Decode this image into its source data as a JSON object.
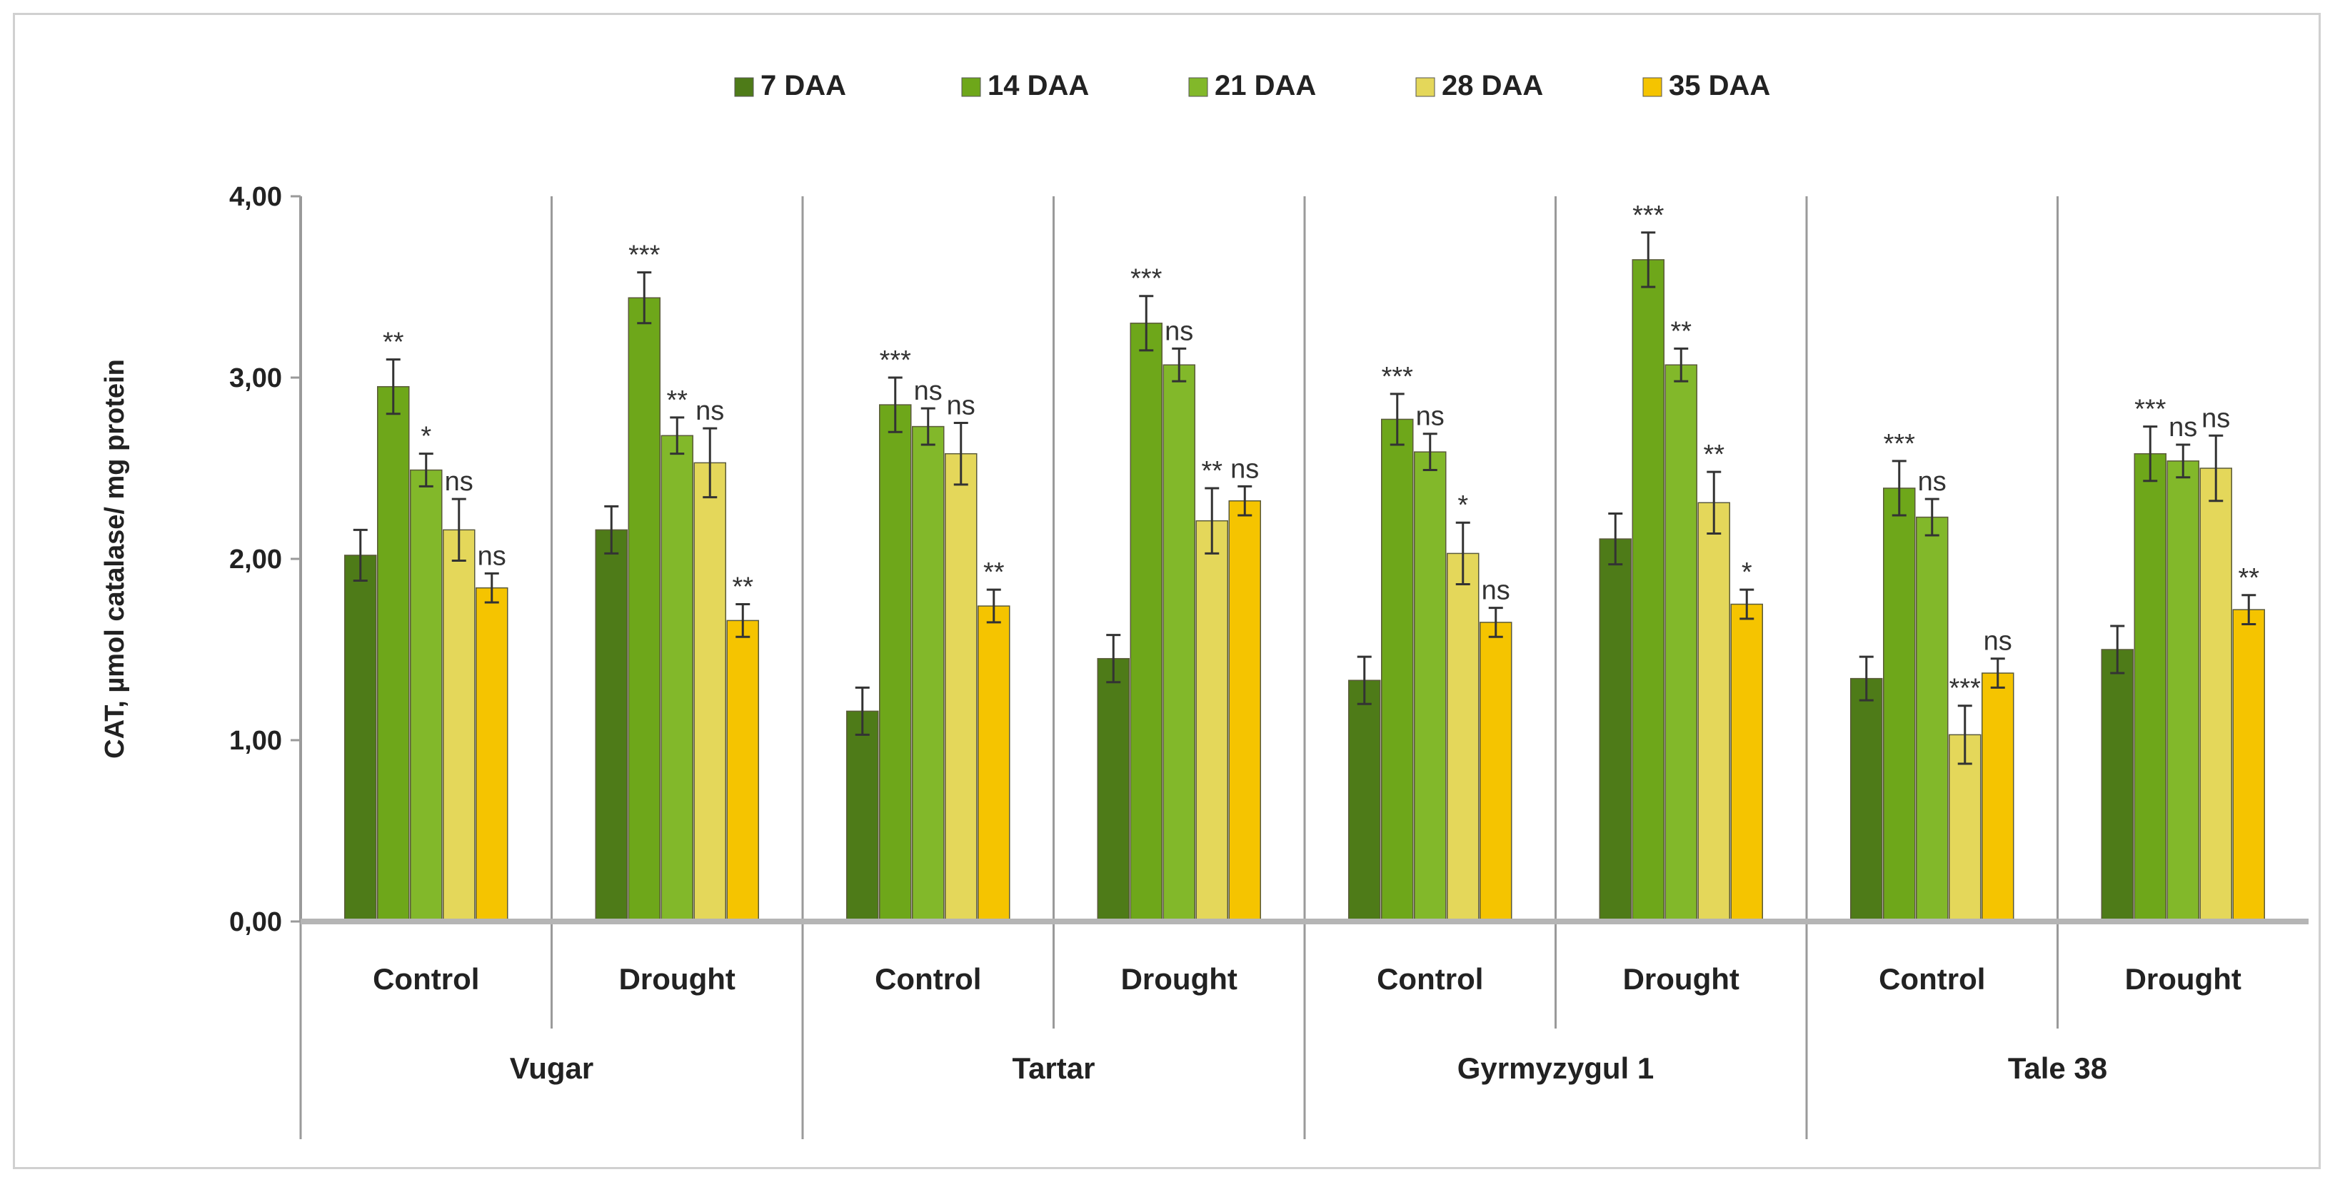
{
  "chart_data": {
    "type": "bar",
    "title": "",
    "xlabel": "",
    "ylabel": "CAT, µmol catalase/ mg protein",
    "ylim": [
      0,
      4
    ],
    "yticks": [
      "0,00",
      "1,00",
      "2,00",
      "3,00",
      "4,00"
    ],
    "grid": false,
    "legend_position": "top",
    "series_names": [
      "7 DAA",
      "14 DAA",
      "21 DAA",
      "28 DAA",
      "35 DAA"
    ],
    "series_colors": [
      "#4e7b18",
      "#6ea71a",
      "#82b82a",
      "#e4d75a",
      "#f5c400"
    ],
    "groups": [
      {
        "variety": "Vugar",
        "conditions": [
          {
            "label": "Control",
            "values": [
              2.02,
              2.95,
              2.49,
              2.16,
              1.84
            ],
            "errors": [
              0.14,
              0.15,
              0.09,
              0.17,
              0.08
            ],
            "signif": [
              "",
              "**",
              "*",
              "ns",
              "ns"
            ]
          },
          {
            "label": "Drought",
            "values": [
              2.16,
              3.44,
              2.68,
              2.53,
              1.66
            ],
            "errors": [
              0.13,
              0.14,
              0.1,
              0.19,
              0.09
            ],
            "signif": [
              "",
              "***",
              "**",
              "ns",
              "**"
            ]
          }
        ]
      },
      {
        "variety": "Tartar",
        "conditions": [
          {
            "label": "Control",
            "values": [
              1.16,
              2.85,
              2.73,
              2.58,
              1.74
            ],
            "errors": [
              0.13,
              0.15,
              0.1,
              0.17,
              0.09
            ],
            "signif": [
              "",
              "***",
              "ns",
              "ns",
              "**"
            ]
          },
          {
            "label": "Drought",
            "values": [
              1.45,
              3.3,
              3.07,
              2.21,
              2.32
            ],
            "errors": [
              0.13,
              0.15,
              0.09,
              0.18,
              0.08
            ],
            "signif": [
              "",
              "***",
              "ns",
              "**",
              "ns"
            ]
          }
        ]
      },
      {
        "variety": "Gyrmyzygul 1",
        "conditions": [
          {
            "label": "Control",
            "values": [
              1.33,
              2.77,
              2.59,
              2.03,
              1.65
            ],
            "errors": [
              0.13,
              0.14,
              0.1,
              0.17,
              0.08
            ],
            "signif": [
              "",
              "***",
              "ns",
              "*",
              "ns"
            ]
          },
          {
            "label": "Drought",
            "values": [
              2.11,
              3.65,
              3.07,
              2.31,
              1.75
            ],
            "errors": [
              0.14,
              0.15,
              0.09,
              0.17,
              0.08
            ],
            "signif": [
              "",
              "***",
              "**",
              "**",
              "*"
            ]
          }
        ]
      },
      {
        "variety": "Tale 38",
        "conditions": [
          {
            "label": "Control",
            "values": [
              1.34,
              2.39,
              2.23,
              1.03,
              1.37
            ],
            "errors": [
              0.12,
              0.15,
              0.1,
              0.16,
              0.08
            ],
            "signif": [
              "",
              "***",
              "ns",
              "***",
              "ns"
            ]
          },
          {
            "label": "Drought",
            "values": [
              1.5,
              2.58,
              2.54,
              2.5,
              1.72
            ],
            "errors": [
              0.13,
              0.15,
              0.09,
              0.18,
              0.08
            ],
            "signif": [
              "",
              "***",
              "ns",
              "ns",
              "**"
            ]
          }
        ]
      }
    ]
  }
}
